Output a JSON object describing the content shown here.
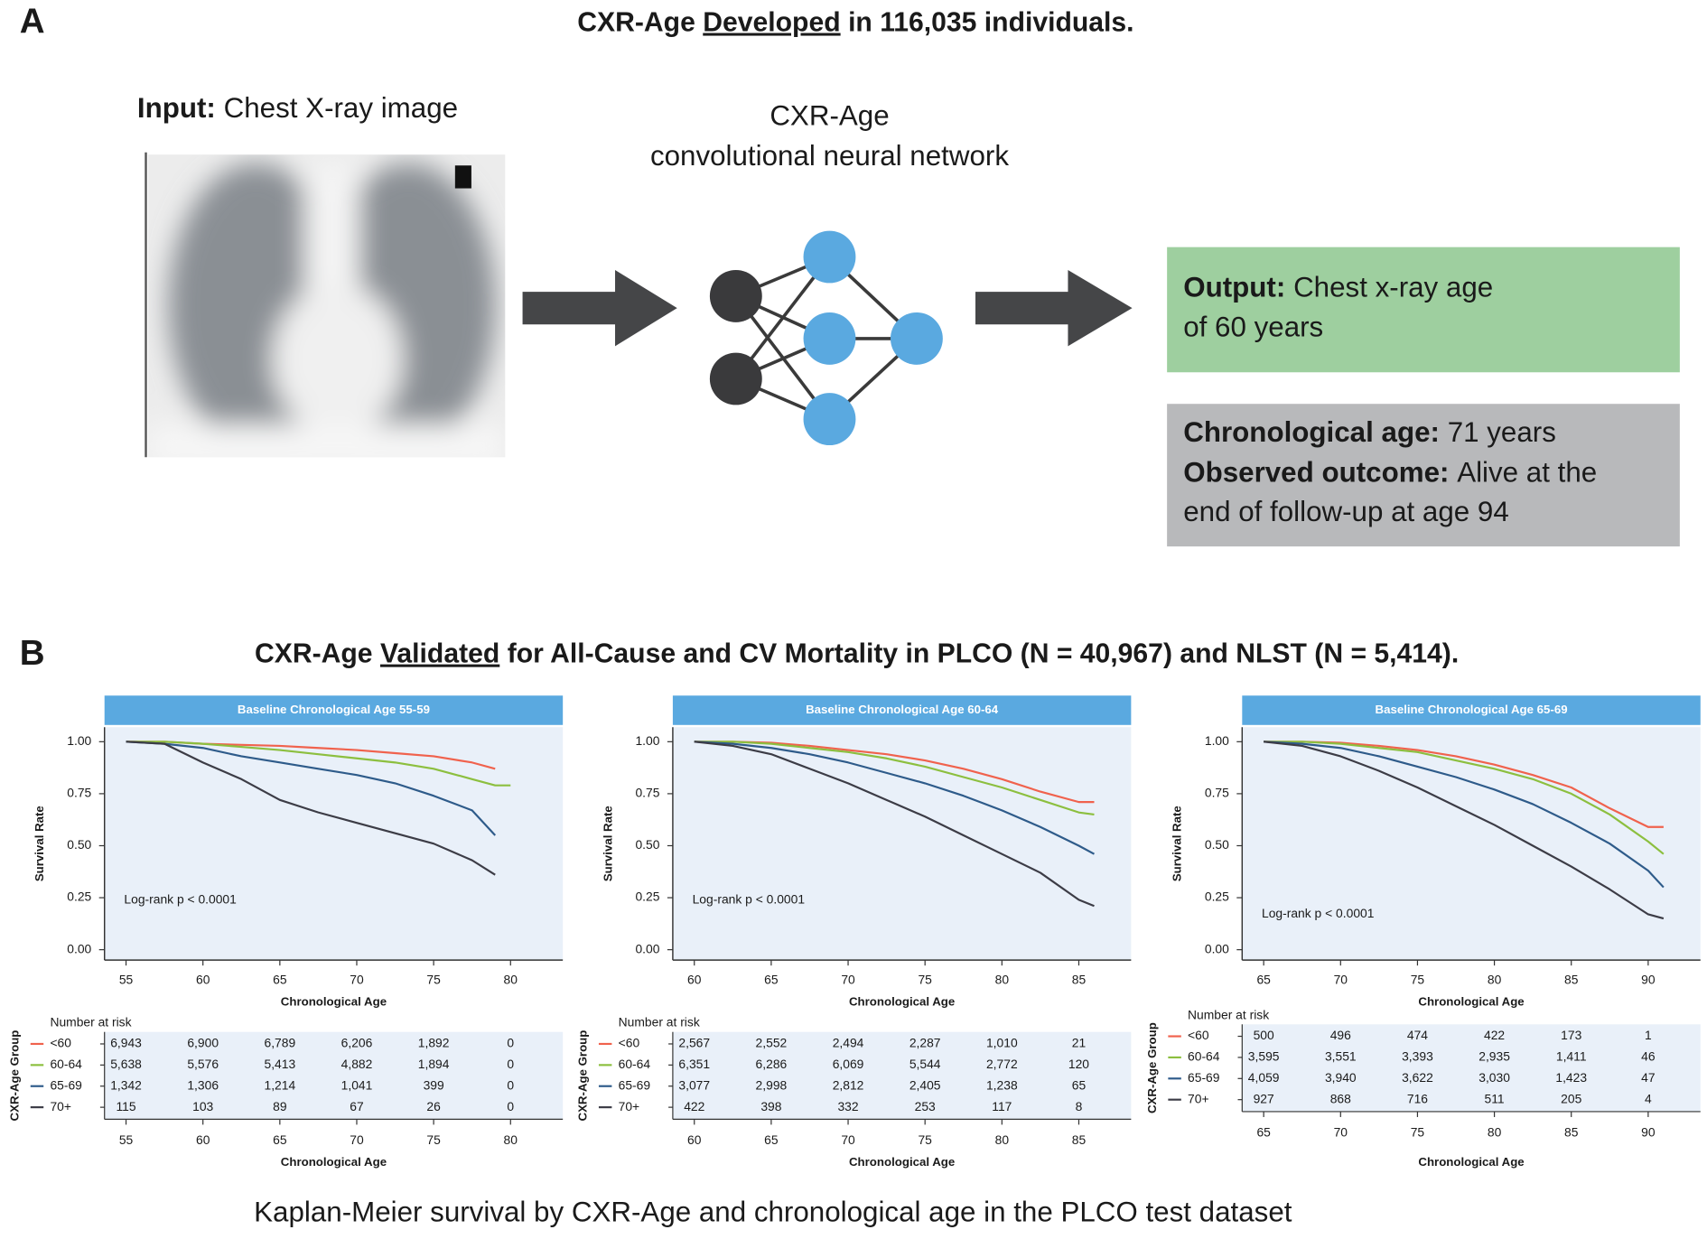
{
  "panel_a": {
    "label": "A",
    "title": {
      "before": "CXR-Age",
      "underlined": "Developed",
      "after": "in 116,035 individuals."
    },
    "input": {
      "bold": "Input:",
      "text": "Chest X-ray image"
    },
    "network": {
      "line1": "CXR-Age",
      "line2": "convolutional neural network"
    },
    "output": {
      "bold": "Output:",
      "line1": "Chest x-ray age",
      "line2": "of 60 years"
    },
    "outcome": {
      "age_bold": "Chronological age:",
      "age": "71 years",
      "outcome_bold": "Observed outcome:",
      "outcome": "Alive at the",
      "outcome_line2": "end of follow-up at age 94"
    }
  },
  "panel_b": {
    "label": "B",
    "title": {
      "before": "CXR-Age",
      "underlined": "Validated",
      "after": "for All-Cause and CV Mortality in PLCO (N = 40,967) and NLST (N = 5,414)."
    },
    "caption": "Kaplan-Meier survival by CXR-Age and chronological age in the PLCO test dataset"
  },
  "chart_data": [
    {
      "type": "line",
      "header": "Baseline Chronological Age 55-59",
      "xlabel": "Chronological Age",
      "ylabel": "Survival Rate",
      "annotation": "Log-rank p < 0.0001",
      "xlim": [
        53.6,
        83.4
      ],
      "xticks": [
        55,
        60,
        65,
        70,
        75,
        80
      ],
      "ylim": [
        -0.05,
        1.07
      ],
      "yticks": [
        {
          "value": 0,
          "label": "0.00"
        },
        {
          "value": 0.25,
          "label": "0.25"
        },
        {
          "value": 0.5,
          "label": "0.50"
        },
        {
          "value": 0.75,
          "label": "0.75"
        },
        {
          "value": 1,
          "label": "1.00"
        }
      ],
      "x": [
        55,
        57.5,
        60,
        62.5,
        65,
        67.5,
        70,
        72.5,
        75,
        77.5,
        79,
        80
      ],
      "series": [
        {
          "name": "<60",
          "color": "#f0624d",
          "values": [
            1,
            1,
            0.99,
            0.985,
            0.98,
            0.97,
            0.96,
            0.945,
            0.93,
            0.9,
            0.87,
            null
          ],
          "at_risk": [
            "6,943",
            "6,900",
            "6,789",
            "6,206",
            "1,892",
            "0"
          ]
        },
        {
          "name": "60-64",
          "color": "#8cbf3f",
          "values": [
            1,
            1,
            0.99,
            0.975,
            0.96,
            0.94,
            0.92,
            0.9,
            0.87,
            0.82,
            0.79,
            0.79
          ],
          "at_risk": [
            "5,638",
            "5,576",
            "5,413",
            "4,882",
            "1,894",
            "0"
          ]
        },
        {
          "name": "65-69",
          "color": "#2e5b8a",
          "values": [
            1,
            0.99,
            0.97,
            0.93,
            0.9,
            0.87,
            0.84,
            0.8,
            0.74,
            0.67,
            0.55,
            null
          ],
          "at_risk": [
            "1,342",
            "1,306",
            "1,214",
            "1,041",
            "399",
            "0"
          ]
        },
        {
          "name": "70+",
          "color": "#3c3c46",
          "values": [
            1,
            0.99,
            0.9,
            0.82,
            0.72,
            0.66,
            0.61,
            0.56,
            0.51,
            0.43,
            0.36,
            null
          ],
          "at_risk": [
            "115",
            "103",
            "89",
            "67",
            "26",
            "0"
          ]
        }
      ],
      "risk_title": "Number at risk",
      "risk_ylabel": "CXR-Age Group",
      "risk_xlabel": "Chronological Age"
    },
    {
      "type": "line",
      "header": "Baseline Chronological Age 60-64",
      "xlabel": "Chronological Age",
      "ylabel": "Survival Rate",
      "annotation": "Log-rank p < 0.0001",
      "xlim": [
        58.6,
        88.4
      ],
      "xticks": [
        60,
        65,
        70,
        75,
        80,
        85
      ],
      "ylim": [
        -0.05,
        1.07
      ],
      "yticks": [
        {
          "value": 0,
          "label": "0.00"
        },
        {
          "value": 0.25,
          "label": "0.25"
        },
        {
          "value": 0.5,
          "label": "0.50"
        },
        {
          "value": 0.75,
          "label": "0.75"
        },
        {
          "value": 1,
          "label": "1.00"
        }
      ],
      "x": [
        60,
        62.5,
        65,
        67.5,
        70,
        72.5,
        75,
        77.5,
        80,
        82.5,
        85,
        86
      ],
      "series": [
        {
          "name": "<60",
          "color": "#f0624d",
          "values": [
            1,
            1,
            0.995,
            0.98,
            0.96,
            0.94,
            0.91,
            0.87,
            0.82,
            0.76,
            0.71,
            0.71
          ],
          "at_risk": [
            "2,567",
            "2,552",
            "2,494",
            "2,287",
            "1,010",
            "21"
          ]
        },
        {
          "name": "60-64",
          "color": "#8cbf3f",
          "values": [
            1,
            1,
            0.99,
            0.97,
            0.95,
            0.92,
            0.88,
            0.83,
            0.78,
            0.72,
            0.66,
            0.65
          ],
          "at_risk": [
            "6,351",
            "6,286",
            "6,069",
            "5,544",
            "2,772",
            "120"
          ]
        },
        {
          "name": "65-69",
          "color": "#2e5b8a",
          "values": [
            1,
            0.99,
            0.97,
            0.94,
            0.9,
            0.85,
            0.8,
            0.74,
            0.67,
            0.59,
            0.5,
            0.46
          ],
          "at_risk": [
            "3,077",
            "2,998",
            "2,812",
            "2,405",
            "1,238",
            "65"
          ]
        },
        {
          "name": "70+",
          "color": "#3c3c46",
          "values": [
            1,
            0.98,
            0.94,
            0.87,
            0.8,
            0.72,
            0.64,
            0.55,
            0.46,
            0.37,
            0.24,
            0.21
          ],
          "at_risk": [
            "422",
            "398",
            "332",
            "253",
            "117",
            "8"
          ]
        }
      ],
      "risk_title": "Number at risk",
      "risk_ylabel": "CXR-Age Group",
      "risk_xlabel": "Chronological Age"
    },
    {
      "type": "line",
      "header": "Baseline Chronological Age 65-69",
      "xlabel": "Chronological Age",
      "ylabel": "Survival Rate",
      "annotation": "Log-rank p < 0.0001",
      "xlim": [
        63.6,
        93.4
      ],
      "xticks": [
        65,
        70,
        75,
        80,
        85,
        90
      ],
      "ylim": [
        -0.05,
        1.07
      ],
      "yticks": [
        {
          "value": 0,
          "label": "0.00"
        },
        {
          "value": 0.25,
          "label": "0.25"
        },
        {
          "value": 0.5,
          "label": "0.50"
        },
        {
          "value": 0.75,
          "label": "0.75"
        },
        {
          "value": 1,
          "label": "1.00"
        }
      ],
      "x": [
        65,
        67.5,
        70,
        72.5,
        75,
        77.5,
        80,
        82.5,
        85,
        87.5,
        90,
        91
      ],
      "series": [
        {
          "name": "<60",
          "color": "#f0624d",
          "values": [
            1,
            1,
            0.995,
            0.98,
            0.96,
            0.93,
            0.89,
            0.84,
            0.78,
            0.68,
            0.59,
            0.59
          ],
          "at_risk": [
            "500",
            "496",
            "474",
            "422",
            "173",
            "1"
          ]
        },
        {
          "name": "60-64",
          "color": "#8cbf3f",
          "values": [
            1,
            1,
            0.99,
            0.97,
            0.95,
            0.91,
            0.87,
            0.82,
            0.75,
            0.65,
            0.52,
            0.46
          ],
          "at_risk": [
            "3,595",
            "3,551",
            "3,393",
            "2,935",
            "1,411",
            "46"
          ]
        },
        {
          "name": "65-69",
          "color": "#2e5b8a",
          "values": [
            1,
            0.99,
            0.97,
            0.93,
            0.88,
            0.83,
            0.77,
            0.7,
            0.61,
            0.51,
            0.38,
            0.3
          ],
          "at_risk": [
            "4,059",
            "3,940",
            "3,622",
            "3,030",
            "1,423",
            "47"
          ]
        },
        {
          "name": "70+",
          "color": "#3c3c46",
          "values": [
            1,
            0.98,
            0.93,
            0.86,
            0.78,
            0.69,
            0.6,
            0.5,
            0.4,
            0.29,
            0.17,
            0.15
          ],
          "at_risk": [
            "927",
            "868",
            "716",
            "511",
            "205",
            "4"
          ]
        }
      ],
      "risk_title": "Number at risk",
      "risk_ylabel": "CXR-Age Group",
      "risk_xlabel": "Chronological Age"
    }
  ]
}
